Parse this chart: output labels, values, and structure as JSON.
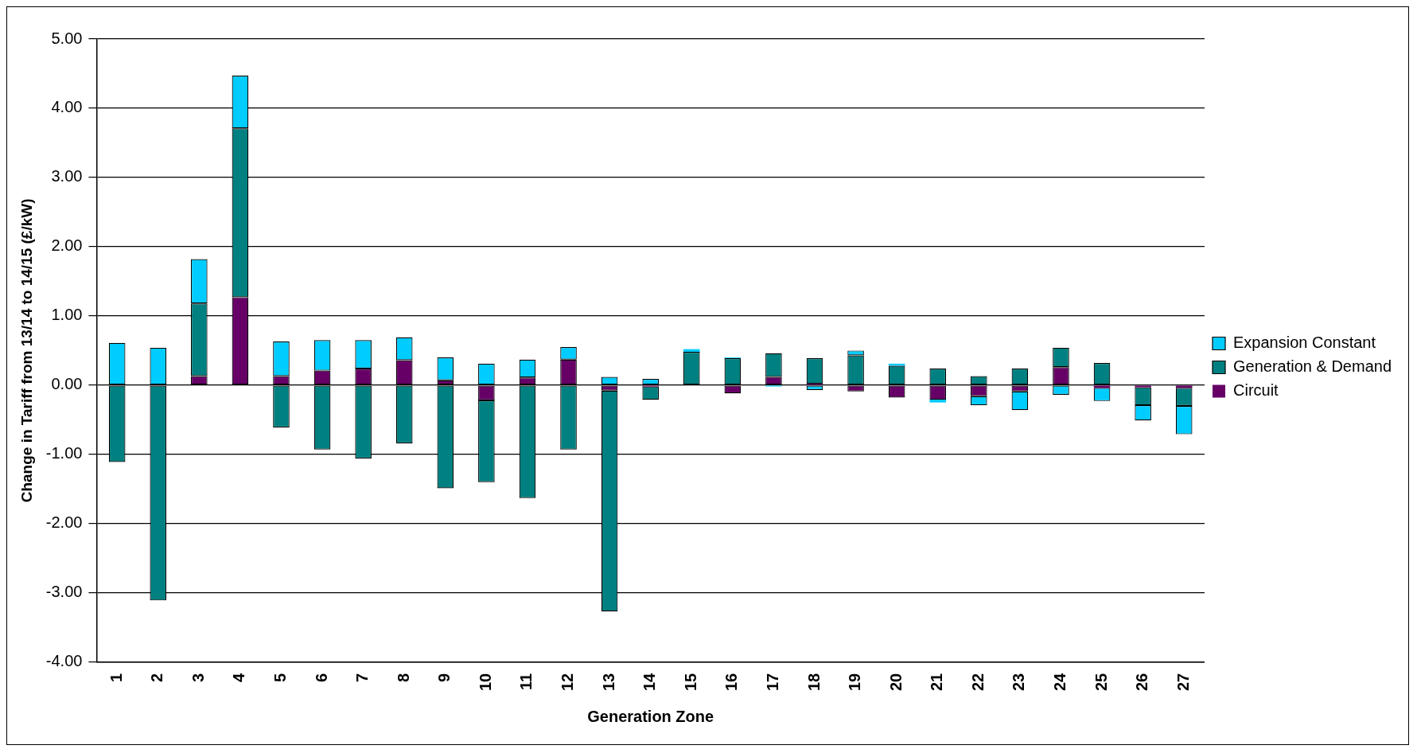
{
  "chart_data": {
    "type": "bar",
    "stacked": true,
    "xlabel": "Generation Zone",
    "ylabel": "Change in Tariff from 13/14 to 14/15 (£/kW)",
    "categories": [
      "1",
      "2",
      "3",
      "4",
      "5",
      "6",
      "7",
      "8",
      "9",
      "10",
      "11",
      "12",
      "13",
      "14",
      "15",
      "16",
      "17",
      "18",
      "19",
      "20",
      "21",
      "22",
      "23",
      "24",
      "25",
      "26",
      "27"
    ],
    "series": [
      {
        "name": "Circuit",
        "color": "#660066",
        "values": [
          0,
          0,
          0.13,
          1.27,
          0.13,
          0.21,
          0.24,
          0.36,
          0.07,
          -0.22,
          0.11,
          0.37,
          -0.08,
          -0.02,
          0,
          -0.12,
          0.12,
          0.02,
          -0.09,
          -0.18,
          -0.21,
          -0.16,
          -0.09,
          0.26,
          -0.04,
          -0.03,
          -0.04
        ]
      },
      {
        "name": "Generation & Demand",
        "color": "#008080",
        "values": [
          -1.11,
          -3.11,
          1.05,
          2.44,
          -0.61,
          -0.93,
          -1.06,
          -0.84,
          -1.49,
          -1.18,
          -1.63,
          -0.93,
          -3.19,
          -0.19,
          0.48,
          0.39,
          0.34,
          0.37,
          0.43,
          0.28,
          0.24,
          0.13,
          0.24,
          0.28,
          0.32,
          -0.26,
          -0.26
        ]
      },
      {
        "name": "Expansion Constant",
        "color": "#00ccff",
        "values": [
          0.61,
          0.54,
          0.64,
          0.76,
          0.5,
          0.44,
          0.41,
          0.33,
          0.33,
          0.31,
          0.26,
          0.18,
          0.12,
          0.09,
          0.04,
          0.01,
          -0.02,
          -0.07,
          0.07,
          0.03,
          -0.04,
          -0.13,
          -0.27,
          -0.14,
          -0.19,
          -0.22,
          -0.41
        ]
      }
    ],
    "ylim": [
      -4,
      5
    ],
    "yticks": [
      {
        "value": -4,
        "label": "-4.00"
      },
      {
        "value": -3,
        "label": "-3.00"
      },
      {
        "value": -2,
        "label": "-2.00"
      },
      {
        "value": -1,
        "label": "-1.00"
      },
      {
        "value": 0,
        "label": "0.00"
      },
      {
        "value": 1,
        "label": "1.00"
      },
      {
        "value": 2,
        "label": "2.00"
      },
      {
        "value": 3,
        "label": "3.00"
      },
      {
        "value": 4,
        "label": "4.00"
      },
      {
        "value": 5,
        "label": "5.00"
      }
    ],
    "grid": "y",
    "legend": "right"
  }
}
